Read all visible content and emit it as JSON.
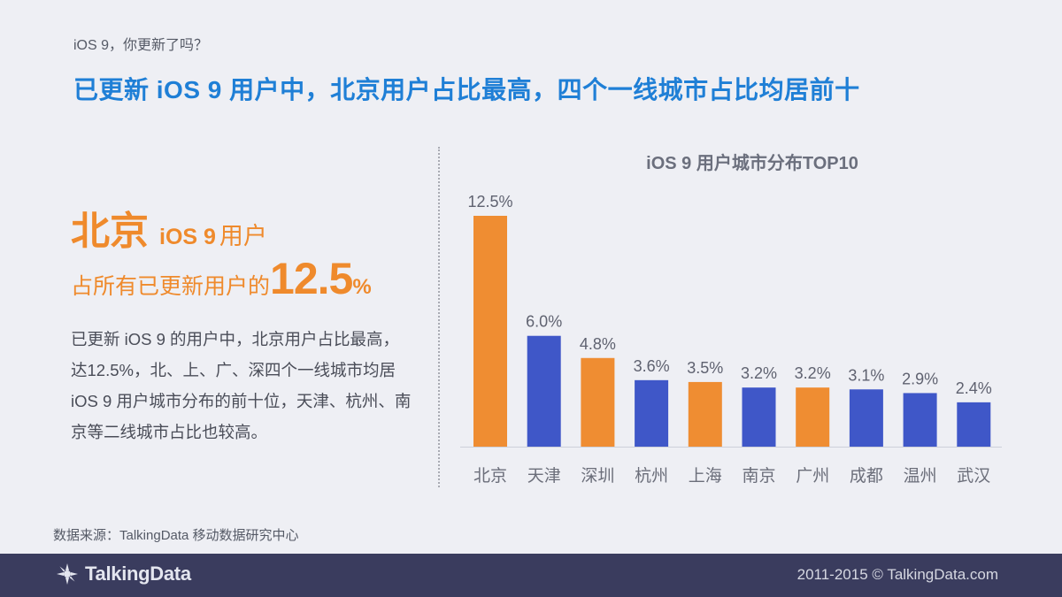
{
  "header": {
    "kicker": "iOS 9，你更新了吗？",
    "headline": "已更新 iOS 9 用户中，北京用户占比最高，四个一线城市占比均居前十"
  },
  "highlight": {
    "city": "北京",
    "ios": "iOS 9",
    "user": "用户",
    "prefix": "占所有已更新用户的",
    "number": "12.5",
    "percent_sign": "%"
  },
  "description": "已更新 iOS 9 的用户中，北京用户占比最高，达12.5%，北、上、广、深四个一线城市均居 iOS 9 用户城市分布的前十位，天津、杭州、南京等二线城市占比也较高。",
  "source": "数据来源：TalkingData 移动数据研究中心",
  "footer": {
    "logo_text": "TalkingData",
    "copyright": "2011-2015 © TalkingData.com"
  },
  "colors": {
    "orange": "#ef8d32",
    "blue": "#3f57c8",
    "headline": "#1f7fd6"
  },
  "chart_data": {
    "type": "bar",
    "title": "iOS 9 用户城市分布TOP10",
    "categories": [
      "北京",
      "天津",
      "深圳",
      "杭州",
      "上海",
      "南京",
      "广州",
      "成都",
      "温州",
      "武汉"
    ],
    "values": [
      12.5,
      6.0,
      4.8,
      3.6,
      3.5,
      3.2,
      3.2,
      3.1,
      2.9,
      2.4
    ],
    "value_labels": [
      "12.5%",
      "6.0%",
      "4.8%",
      "3.6%",
      "3.5%",
      "3.2%",
      "3.2%",
      "3.1%",
      "2.9%",
      "2.4%"
    ],
    "bar_colors": [
      "orange",
      "blue",
      "orange",
      "blue",
      "orange",
      "blue",
      "orange",
      "blue",
      "blue",
      "blue"
    ],
    "ylim": [
      0,
      12.5
    ],
    "grid": false,
    "xlabel": "",
    "ylabel": ""
  }
}
